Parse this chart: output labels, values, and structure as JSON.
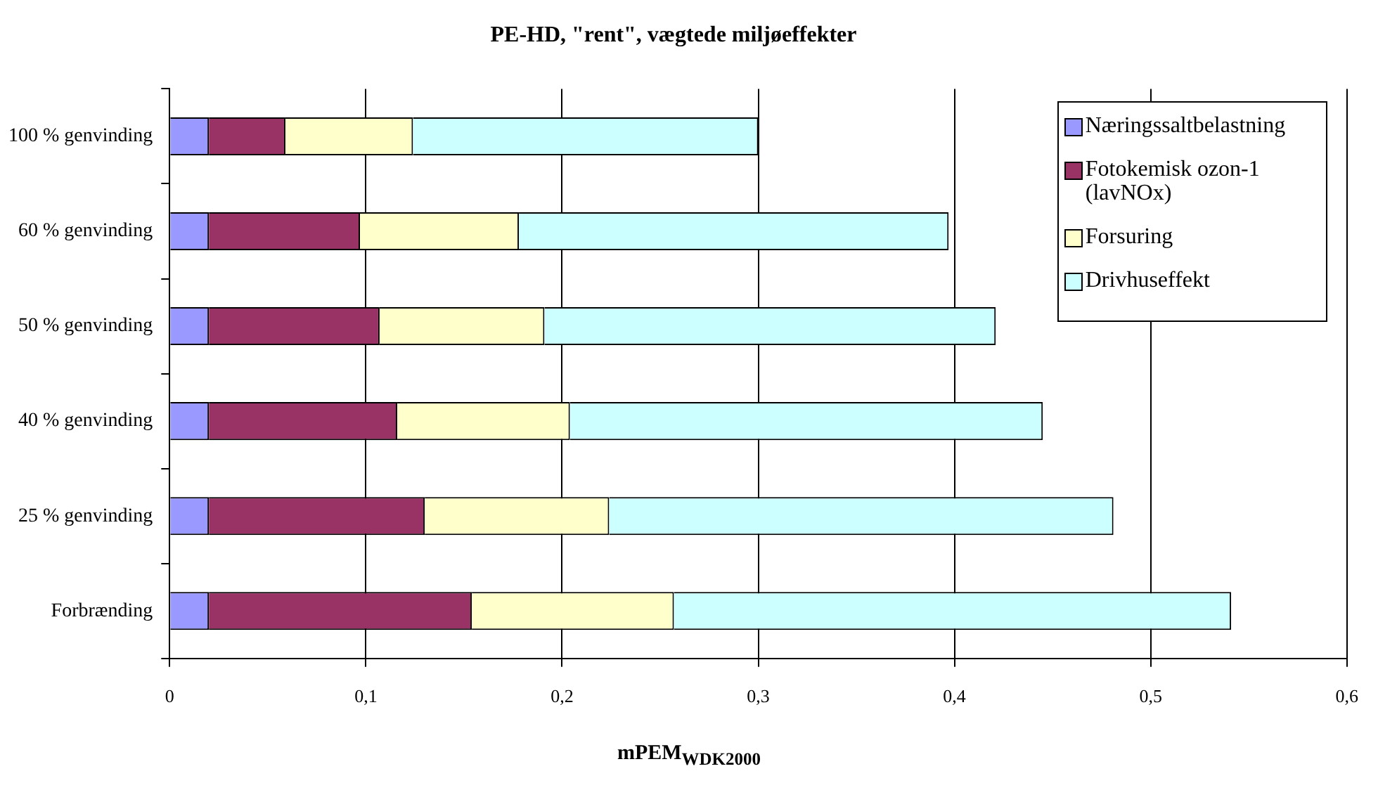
{
  "chart_data": {
    "type": "bar",
    "orientation": "horizontal",
    "stacked": true,
    "title": "PE-HD, \"rent\", vægtede miljøeffekter",
    "xlabel": "mPEM$_{WDK2000}$",
    "categories": [
      "100 % genvinding",
      "60 % genvinding",
      "50 % genvinding",
      "40 % genvinding",
      "25 % genvinding",
      "Forbrænding"
    ],
    "series": [
      {
        "name": "Næringssaltbelastning",
        "color": "#9999ff",
        "values": [
          0.02,
          0.02,
          0.02,
          0.02,
          0.02,
          0.02
        ]
      },
      {
        "name": "Fotokemisk ozon-1 (lavNOx)",
        "color": "#993366",
        "values": [
          0.039,
          0.077,
          0.087,
          0.096,
          0.11,
          0.134
        ]
      },
      {
        "name": "Forsuring",
        "color": "#ffffcc",
        "values": [
          0.065,
          0.081,
          0.084,
          0.088,
          0.094,
          0.103
        ]
      },
      {
        "name": "Drivhuseffekt",
        "color": "#ccffff",
        "values": [
          0.176,
          0.219,
          0.23,
          0.241,
          0.257,
          0.284
        ]
      }
    ],
    "xlim": [
      0,
      0.6
    ],
    "xticks": [
      {
        "value": 0,
        "label": "0"
      },
      {
        "value": 0.1,
        "label": "0,1"
      },
      {
        "value": 0.2,
        "label": "0,2"
      },
      {
        "value": 0.3,
        "label": "0,3"
      },
      {
        "value": 0.4,
        "label": "0,4"
      },
      {
        "value": 0.5,
        "label": "0,5"
      },
      {
        "value": 0.6,
        "label": "0,6"
      }
    ],
    "grid": "x",
    "legend": "top right"
  }
}
